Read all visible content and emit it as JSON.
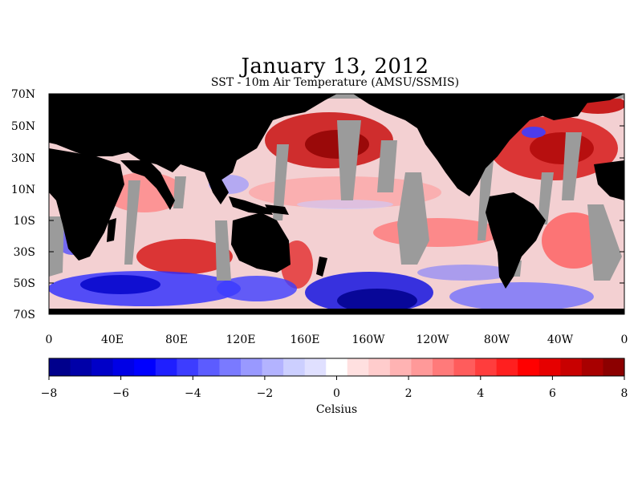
{
  "header": {
    "title": "January 13, 2012",
    "subtitle": "SST - 10m Air Temperature (AMSU/SSMIS)"
  },
  "map": {
    "lat_labels": [
      "70N",
      "50N",
      "30N",
      "10N",
      "10S",
      "30S",
      "50S",
      "70S"
    ],
    "lon_labels": [
      "0",
      "40E",
      "80E",
      "120E",
      "160E",
      "160W",
      "120W",
      "80W",
      "40W",
      "0"
    ],
    "colors": {
      "land": "#000000",
      "missing": "#999999",
      "ocean_base": "#f2c9cb"
    }
  },
  "colorbar": {
    "tick_labels": [
      "−8",
      "−6",
      "−4",
      "−2",
      "0",
      "2",
      "4",
      "6",
      "8"
    ],
    "unit_label": "Celsius",
    "colors": [
      "#00008c",
      "#0000a8",
      "#0000c8",
      "#0000e6",
      "#0000ff",
      "#1f1fff",
      "#3d3dff",
      "#5c5cff",
      "#7a7aff",
      "#9999ff",
      "#b3b3ff",
      "#cccfff",
      "#e0e0ff",
      "#ffffff",
      "#ffe0e0",
      "#ffcccc",
      "#ffb3b3",
      "#ff9999",
      "#ff7a7a",
      "#ff5c5c",
      "#ff3d3d",
      "#ff1f1f",
      "#ff0000",
      "#e60000",
      "#c80000",
      "#a80000",
      "#8c0000"
    ]
  }
}
